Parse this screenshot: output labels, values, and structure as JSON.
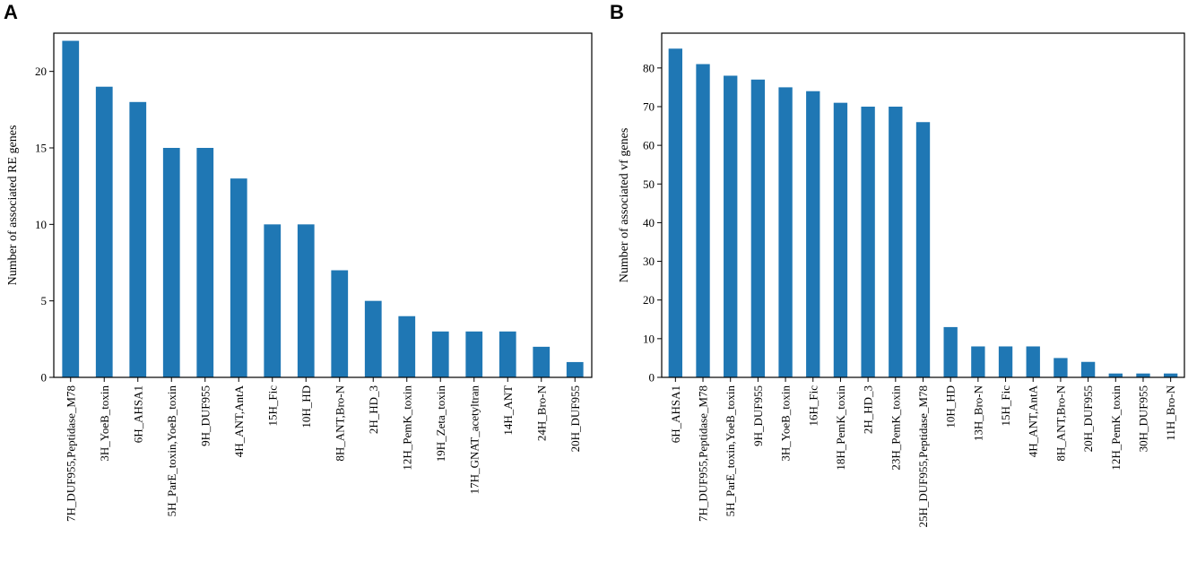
{
  "figure": {
    "panel_labels": [
      "A",
      "B"
    ]
  },
  "chart_data": [
    {
      "type": "bar",
      "panel": "A",
      "title": "",
      "xlabel": "",
      "ylabel": "Number of associated RE genes",
      "ylim": [
        0,
        22.5
      ],
      "yticks": [
        0,
        5,
        10,
        15,
        20
      ],
      "bar_color": "#1f77b4",
      "categories": [
        "7H_DUF955,Peptidase_M78",
        "3H_YoeB_toxin",
        "6H_AHSA1",
        "5H_ParE_toxin,YoeB_toxin",
        "9H_DUF955",
        "4H_ANT,AntA",
        "15H_Fic",
        "10H_HD",
        "8H_ANT,Bro-N",
        "2H_HD_3",
        "12H_PemK_toxin",
        "19H_Zeta_toxin",
        "17H_GNAT_acetyltran",
        "14H_ANT",
        "24H_Bro-N",
        "20H_DUF955"
      ],
      "values": [
        22,
        19,
        18,
        15,
        15,
        13,
        10,
        10,
        7,
        5,
        4,
        3,
        3,
        3,
        2,
        1
      ]
    },
    {
      "type": "bar",
      "panel": "B",
      "title": "",
      "xlabel": "",
      "ylabel": "Number of associated vf genes",
      "ylim": [
        0,
        89
      ],
      "yticks": [
        0,
        10,
        20,
        30,
        40,
        50,
        60,
        70,
        80
      ],
      "bar_color": "#1f77b4",
      "categories": [
        "6H_AHSA1",
        "7H_DUF955,Peptidase_M78",
        "5H_ParE_toxin,YoeB_toxin",
        "9H_DUF955",
        "3H_YoeB_toxin",
        "16H_Fic",
        "18H_PemK_toxin",
        "2H_HD_3",
        "23H_PemK_toxin",
        "25H_DUF955,Peptidase_M78",
        "10H_HD",
        "13H_Bro-N",
        "15H_Fic",
        "4H_ANT,AntA",
        "8H_ANT,Bro-N",
        "20H_DUF955",
        "12H_PemK_toxin",
        "30H_DUF955",
        "11H_Bro-N"
      ],
      "values": [
        85,
        81,
        78,
        77,
        75,
        74,
        71,
        70,
        70,
        66,
        13,
        8,
        8,
        8,
        5,
        4,
        1,
        1,
        1
      ]
    }
  ]
}
